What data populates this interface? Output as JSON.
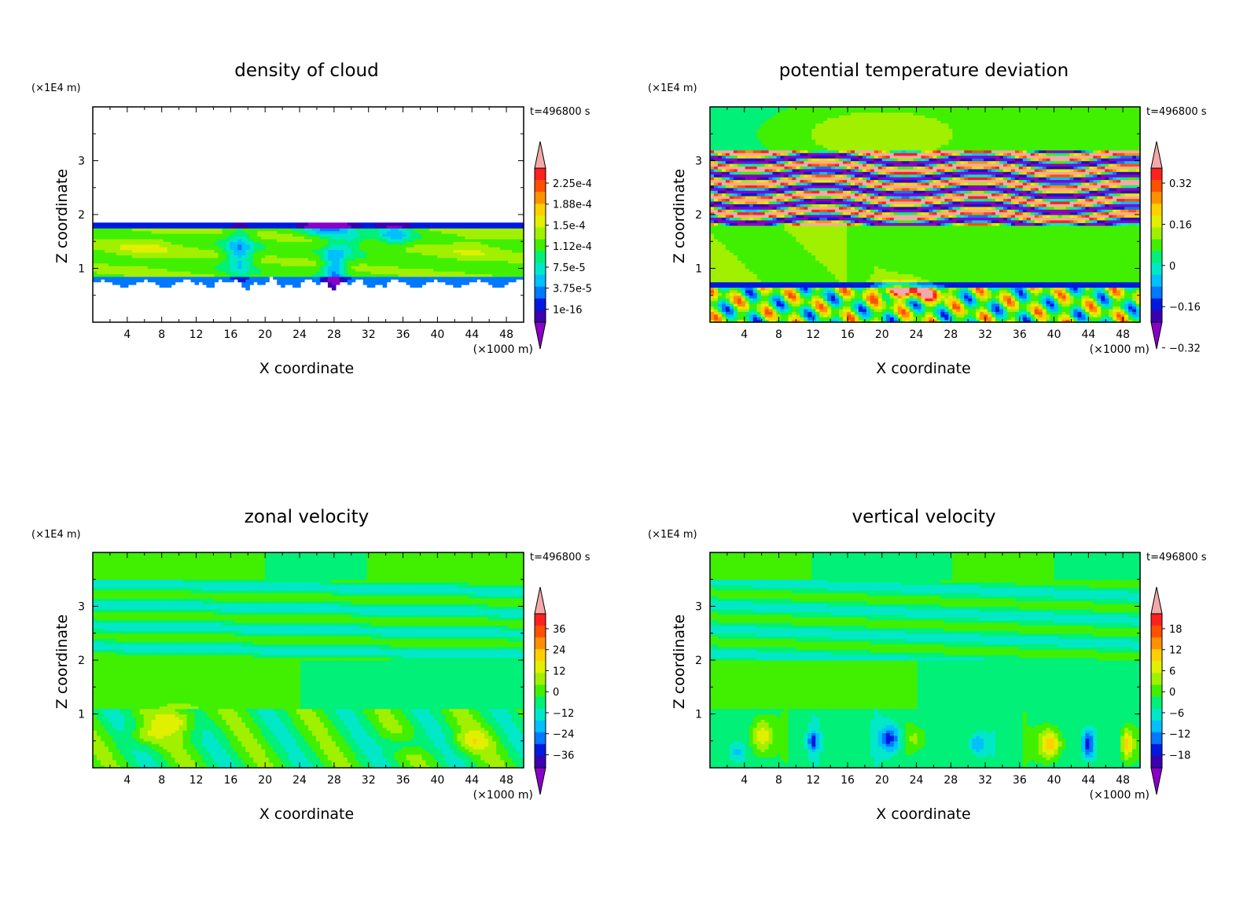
{
  "chart_data": [
    {
      "type": "heatmap",
      "title": "density of cloud",
      "xlabel": "X coordinate",
      "ylabel": "Z coordinate",
      "x_unit": "(×1000 m)",
      "y_unit": "(×1E4 m)",
      "time_label": "t=496800 s",
      "xlim": [
        0,
        50
      ],
      "ylim": [
        0,
        4
      ],
      "xticks": [
        4,
        8,
        12,
        16,
        20,
        24,
        28,
        32,
        36,
        40,
        44,
        48
      ],
      "yticks": [
        1,
        2,
        3
      ],
      "colorbar_labels": [
        "2.25e-4",
        "1.88e-4",
        "1.5e-4",
        "1.12e-4",
        "7.5e-5",
        "3.75e-5",
        "1e-16"
      ],
      "colorbar_values": [
        0.000225,
        0.000188,
        0.00015,
        0.000112,
        7.5e-05,
        3.75e-05,
        1e-16
      ],
      "field": "cloud",
      "colors": [
        "#8a00c8",
        "#3a00b0",
        "#0018e0",
        "#0078ff",
        "#00c0ff",
        "#00e8c8",
        "#00f078",
        "#40f000",
        "#a0f000",
        "#e0f000",
        "#ffd000",
        "#ff9000",
        "#ff5000",
        "#ff2020",
        "#f4a8a8"
      ]
    },
    {
      "type": "heatmap",
      "title": "potential temperature deviation",
      "xlabel": "X coordinate",
      "ylabel": "Z coordinate",
      "x_unit": "(×1000 m)",
      "y_unit": "(×1E4 m)",
      "time_label": "t=496800 s",
      "xlim": [
        0,
        50
      ],
      "ylim": [
        0,
        4
      ],
      "xticks": [
        4,
        8,
        12,
        16,
        20,
        24,
        28,
        32,
        36,
        40,
        44,
        48
      ],
      "yticks": [
        1,
        2,
        3
      ],
      "colorbar_labels": [
        "0.32",
        "0.16",
        "0",
        "−0.16",
        "−0.32"
      ],
      "colorbar_values": [
        0.32,
        0.16,
        0,
        -0.16,
        -0.32
      ],
      "field": "theta",
      "colors": [
        "#8a00c8",
        "#3a00b0",
        "#0018e0",
        "#0078ff",
        "#00c0ff",
        "#00e8c8",
        "#00f078",
        "#40f000",
        "#a0f000",
        "#e0f000",
        "#ffd000",
        "#ff9000",
        "#ff5000",
        "#ff2020",
        "#f4a8a8"
      ]
    },
    {
      "type": "heatmap",
      "title": "zonal velocity",
      "xlabel": "X coordinate",
      "ylabel": "Z coordinate",
      "x_unit": "(×1000 m)",
      "y_unit": "(×1E4 m)",
      "time_label": "t=496800 s",
      "xlim": [
        0,
        50
      ],
      "ylim": [
        0,
        4
      ],
      "xticks": [
        4,
        8,
        12,
        16,
        20,
        24,
        28,
        32,
        36,
        40,
        44,
        48
      ],
      "yticks": [
        1,
        2,
        3
      ],
      "colorbar_labels": [
        "36",
        "24",
        "12",
        "0",
        "−12",
        "−24",
        "−36"
      ],
      "colorbar_values": [
        36,
        24,
        12,
        0,
        -12,
        -24,
        -36
      ],
      "field": "zonal",
      "colors": [
        "#8a00c8",
        "#3a00b0",
        "#0018e0",
        "#0078ff",
        "#00c0ff",
        "#00e8c8",
        "#00f078",
        "#40f000",
        "#a0f000",
        "#e0f000",
        "#ffd000",
        "#ff9000",
        "#ff5000",
        "#ff2020",
        "#f4a8a8"
      ]
    },
    {
      "type": "heatmap",
      "title": "vertical velocity",
      "xlabel": "X coordinate",
      "ylabel": "Z coordinate",
      "x_unit": "(×1000 m)",
      "y_unit": "(×1E4 m)",
      "time_label": "t=496800 s",
      "xlim": [
        0,
        50
      ],
      "ylim": [
        0,
        4
      ],
      "xticks": [
        4,
        8,
        12,
        16,
        20,
        24,
        28,
        32,
        36,
        40,
        44,
        48
      ],
      "yticks": [
        1,
        2,
        3
      ],
      "colorbar_labels": [
        "18",
        "12",
        "6",
        "0",
        "−6",
        "−12",
        "−18"
      ],
      "colorbar_values": [
        18,
        12,
        6,
        0,
        -6,
        -12,
        -18
      ],
      "field": "vertical",
      "colors": [
        "#8a00c8",
        "#3a00b0",
        "#0018e0",
        "#0078ff",
        "#00c0ff",
        "#00e8c8",
        "#00f078",
        "#40f000",
        "#a0f000",
        "#e0f000",
        "#ffd000",
        "#ff9000",
        "#ff5000",
        "#ff2020",
        "#f4a8a8"
      ]
    }
  ]
}
